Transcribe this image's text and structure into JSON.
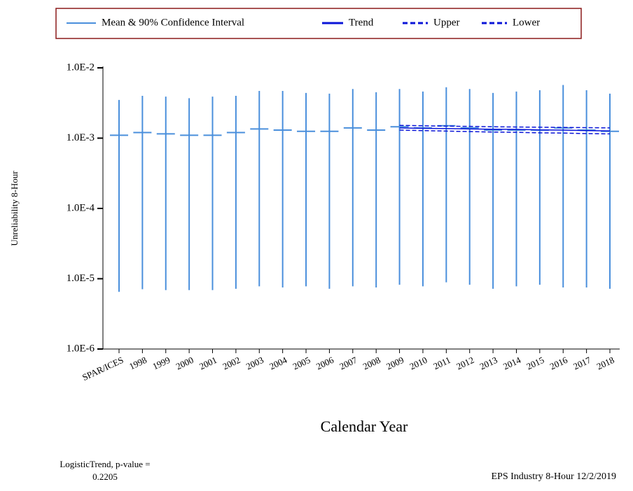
{
  "chart_data": {
    "type": "errorbar-log",
    "legend_title": null,
    "y_label": "Unreliability 8-Hour",
    "x_label": "Calendar Year",
    "annotations": [
      "LogisticTrend, p-value =",
      "0.2205"
    ],
    "footer": "EPS Industry 8-Hour 12/2/2019",
    "categories": [
      "SPAR/ICES",
      "1998",
      "1999",
      "2000",
      "2001",
      "2002",
      "2003",
      "2004",
      "2005",
      "2006",
      "2007",
      "2008",
      "2009",
      "2010",
      "2011",
      "2012",
      "2013",
      "2014",
      "2015",
      "2016",
      "2017",
      "2018"
    ],
    "log_scale": true,
    "ylim": [
      1e-06,
      0.01
    ],
    "yticks": [
      {
        "value": 0.01,
        "label": "1.0E-2"
      },
      {
        "value": 0.001,
        "label": "1.0E-3"
      },
      {
        "value": 0.0001,
        "label": "1.0E-4"
      },
      {
        "value": 1e-05,
        "label": "1.0E-5"
      },
      {
        "value": 1e-06,
        "label": "1.0E-6"
      }
    ],
    "legend_border": "#8b1a1a",
    "series": [
      {
        "name": "Mean & 90% Confidence Interval",
        "color": "#4a8fdc",
        "style": "errorbar",
        "values": [
          0.0011,
          0.0012,
          0.00115,
          0.0011,
          0.0011,
          0.0012,
          0.00135,
          0.0013,
          0.00125,
          0.00125,
          0.0014,
          0.0013,
          0.00145,
          0.0014,
          0.0015,
          0.0014,
          0.0013,
          0.0013,
          0.0013,
          0.0014,
          0.0013,
          0.00125
        ],
        "lower": [
          6.5e-06,
          7.1e-06,
          6.9e-06,
          6.9e-06,
          6.9e-06,
          7.2e-06,
          7.8e-06,
          7.5e-06,
          7.8e-06,
          7.2e-06,
          7.8e-06,
          7.5e-06,
          8.2e-06,
          7.8e-06,
          8.9e-06,
          8.2e-06,
          7.2e-06,
          7.8e-06,
          8.2e-06,
          7.5e-06,
          7.5e-06,
          7.2e-06
        ],
        "upper": [
          0.0035,
          0.004,
          0.0039,
          0.0037,
          0.0039,
          0.004,
          0.0047,
          0.0047,
          0.0044,
          0.0043,
          0.005,
          0.0045,
          0.005,
          0.0046,
          0.0053,
          0.005,
          0.0044,
          0.0046,
          0.0048,
          0.0057,
          0.0048,
          0.0043
        ]
      },
      {
        "name": "Trend",
        "color": "#0a14d8",
        "style": "solid",
        "values": [
          null,
          null,
          null,
          null,
          null,
          null,
          null,
          null,
          null,
          null,
          null,
          null,
          0.0014,
          0.00138,
          0.00137,
          0.00135,
          0.00134,
          0.00133,
          0.00131,
          0.0013,
          0.00128,
          0.00127
        ]
      },
      {
        "name": "Upper",
        "color": "#0a14d8",
        "style": "dashed",
        "values": [
          null,
          null,
          null,
          null,
          null,
          null,
          null,
          null,
          null,
          null,
          null,
          null,
          0.00152,
          0.0015,
          0.00148,
          0.00147,
          0.00145,
          0.00144,
          0.00143,
          0.00142,
          0.00141,
          0.0014
        ]
      },
      {
        "name": "Lower",
        "color": "#0a14d8",
        "style": "dashed",
        "values": [
          null,
          null,
          null,
          null,
          null,
          null,
          null,
          null,
          null,
          null,
          null,
          null,
          0.0013,
          0.00128,
          0.00126,
          0.00124,
          0.00122,
          0.00121,
          0.00119,
          0.00118,
          0.00116,
          0.00115
        ]
      }
    ]
  }
}
